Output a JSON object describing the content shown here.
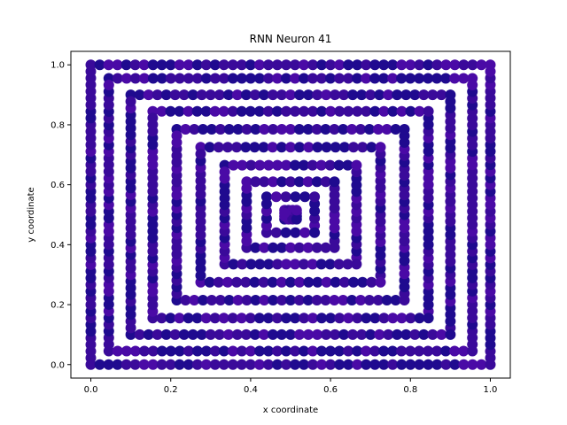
{
  "chart_data": {
    "type": "scatter",
    "title": "RNN Neuron 41",
    "xlabel": "x coordinate",
    "ylabel": "y coordinate",
    "xlim": [
      -0.05,
      1.05
    ],
    "ylim": [
      -0.045,
      1.045
    ],
    "xticks": [
      0.0,
      0.2,
      0.4,
      0.6,
      0.8,
      1.0
    ],
    "xtick_labels": [
      "0.0",
      "0.2",
      "0.4",
      "0.6",
      "0.8",
      "1.0"
    ],
    "yticks": [
      0.0,
      0.2,
      0.4,
      0.6,
      0.8,
      1.0
    ],
    "ytick_labels": [
      "0.0",
      "0.2",
      "0.4",
      "0.6",
      "0.8",
      "1.0"
    ],
    "grid": false,
    "pattern": "concentric square spiral trajectories of points",
    "rings": [
      {
        "lo": 0.0,
        "hi": 1.0
      },
      {
        "lo": 0.045,
        "hi": 0.955
      },
      {
        "lo": 0.1,
        "hi": 0.9
      },
      {
        "lo": 0.155,
        "hi": 0.845
      },
      {
        "lo": 0.215,
        "hi": 0.785
      },
      {
        "lo": 0.275,
        "hi": 0.725
      },
      {
        "lo": 0.335,
        "hi": 0.665
      },
      {
        "lo": 0.39,
        "hi": 0.61
      },
      {
        "lo": 0.44,
        "hi": 0.56
      },
      {
        "lo": 0.485,
        "hi": 0.515
      }
    ],
    "colors": {
      "dark": "#1f0a8f",
      "mid": "#3a0a9a",
      "light": "#4a0aa6"
    }
  }
}
